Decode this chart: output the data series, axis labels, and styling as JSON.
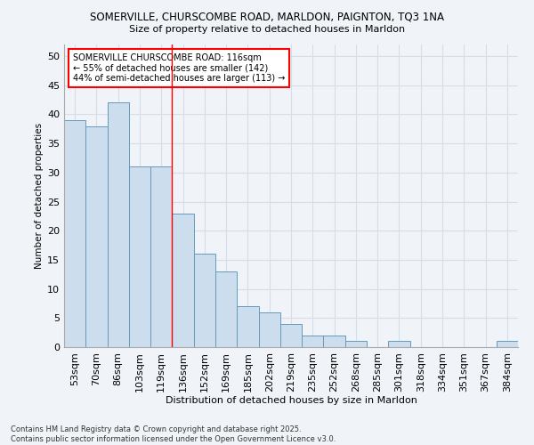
{
  "title1": "SOMERVILLE, CHURSCOMBE ROAD, MARLDON, PAIGNTON, TQ3 1NA",
  "title2": "Size of property relative to detached houses in Marldon",
  "xlabel": "Distribution of detached houses by size in Marldon",
  "ylabel": "Number of detached properties",
  "categories": [
    "53sqm",
    "70sqm",
    "86sqm",
    "103sqm",
    "119sqm",
    "136sqm",
    "152sqm",
    "169sqm",
    "185sqm",
    "202sqm",
    "219sqm",
    "235sqm",
    "252sqm",
    "268sqm",
    "285sqm",
    "301sqm",
    "318sqm",
    "334sqm",
    "351sqm",
    "367sqm",
    "384sqm"
  ],
  "values": [
    39,
    38,
    42,
    31,
    31,
    23,
    16,
    13,
    7,
    6,
    4,
    2,
    2,
    1,
    0,
    1,
    0,
    0,
    0,
    0,
    1
  ],
  "bar_color": "#ccdded",
  "bar_edge_color": "#6699bb",
  "grid_color": "#d4dde8",
  "background_color": "#f0f4f8",
  "annotation_text": "SOMERVILLE CHURSCOMBE ROAD: 116sqm\n← 55% of detached houses are smaller (142)\n44% of semi-detached houses are larger (113) →",
  "vline_x": 4.5,
  "ylim": [
    0,
    52
  ],
  "yticks": [
    0,
    5,
    10,
    15,
    20,
    25,
    30,
    35,
    40,
    45,
    50
  ],
  "footnote": "Contains HM Land Registry data © Crown copyright and database right 2025.\nContains public sector information licensed under the Open Government Licence v3.0."
}
